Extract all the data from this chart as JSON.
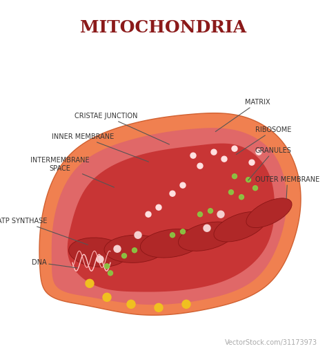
{
  "title": "MITOCHONDRIA",
  "title_color": "#8B1A1A",
  "title_fontsize": 18,
  "background_color": "#FFFFFF",
  "outer_color": "#F08050",
  "inner_pink_color": "#E87070",
  "matrix_red_color": "#C03030",
  "crista_color": "#B02828",
  "label_color": "#333333",
  "label_fontsize": 7,
  "line_color": "#555555",
  "footer_bg": "#2A2A2A",
  "footer_text_color": "#FFFFFF",
  "vectorstock_text": "VectorStock®",
  "vectorstock_url": "VectorStock.com/31173973"
}
